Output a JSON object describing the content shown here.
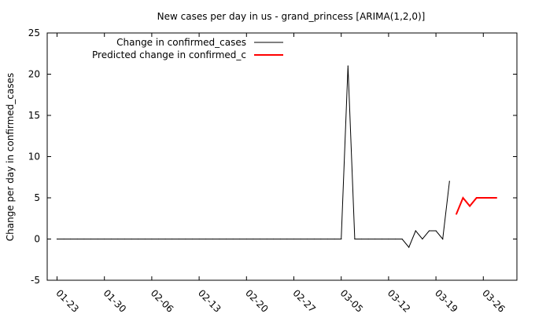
{
  "chart_data": {
    "type": "line",
    "title": "New cases per day in us - grand_princess [ARIMA(1,2,0)]",
    "xlabel": "",
    "ylabel": "Change per day in confirmed_cases",
    "x_ticks": [
      "01-23",
      "01-30",
      "02-06",
      "02-13",
      "02-20",
      "02-27",
      "03-05",
      "03-12",
      "03-19",
      "03-26"
    ],
    "y_ticks": [
      -5,
      0,
      5,
      10,
      15,
      20,
      25
    ],
    "ylim": [
      -5,
      25
    ],
    "grid": false,
    "legend_position": "top-left",
    "series": [
      {
        "name": "Change in confirmed_cases",
        "color": "#000000",
        "x": [
          "01-23",
          "01-24",
          "01-25",
          "01-26",
          "01-27",
          "01-28",
          "01-29",
          "01-30",
          "01-31",
          "02-01",
          "02-02",
          "02-03",
          "02-04",
          "02-05",
          "02-06",
          "02-07",
          "02-08",
          "02-09",
          "02-10",
          "02-11",
          "02-12",
          "02-13",
          "02-14",
          "02-15",
          "02-16",
          "02-17",
          "02-18",
          "02-19",
          "02-20",
          "02-21",
          "02-22",
          "02-23",
          "02-24",
          "02-25",
          "02-26",
          "02-27",
          "02-28",
          "02-29",
          "03-01",
          "03-02",
          "03-03",
          "03-04",
          "03-05",
          "03-06",
          "03-07",
          "03-08",
          "03-09",
          "03-10",
          "03-11",
          "03-12",
          "03-13",
          "03-14",
          "03-15",
          "03-16",
          "03-17",
          "03-18",
          "03-19",
          "03-20",
          "03-21"
        ],
        "y": [
          0,
          0,
          0,
          0,
          0,
          0,
          0,
          0,
          0,
          0,
          0,
          0,
          0,
          0,
          0,
          0,
          0,
          0,
          0,
          0,
          0,
          0,
          0,
          0,
          0,
          0,
          0,
          0,
          0,
          0,
          0,
          0,
          0,
          0,
          0,
          0,
          0,
          0,
          0,
          0,
          0,
          0,
          0,
          21,
          0,
          0,
          0,
          0,
          0,
          0,
          0,
          0,
          -1,
          1,
          0,
          1,
          1,
          0,
          7
        ]
      },
      {
        "name": "Predicted change in confirmed_c",
        "color": "#ff0000",
        "x": [
          "03-22",
          "03-23",
          "03-24",
          "03-25",
          "03-26",
          "03-27",
          "03-28"
        ],
        "y": [
          3,
          5,
          4,
          5,
          5,
          5,
          5
        ]
      }
    ]
  }
}
